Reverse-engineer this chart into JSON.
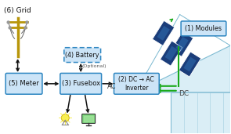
{
  "bg_color": "#ffffff",
  "box_fill": "#cce4f7",
  "box_edge": "#2e86c1",
  "battery_fill": "#cce4f7",
  "battery_edge": "#2e86c1",
  "box_labels": {
    "meter": "(5) Meter",
    "fusebox": "(3) Fusebox",
    "inverter": "(2) DC → AC\nInverter",
    "battery": "(4) Battery",
    "modules": "(1) Modules"
  },
  "text_labels": {
    "grid": "(6) Grid",
    "ac": "AC",
    "dc": "DC",
    "optional": "(Optional)"
  },
  "arrow_color": "#111111",
  "green_color": "#1aaa1a",
  "pole_color": "#b8960a",
  "panel_dark": "#1b3d7a",
  "panel_light": "#2e6db0",
  "building_fill": "#daeef6",
  "building_edge": "#7ab8d0",
  "roof_fill": "#daeef6",
  "roof_edge": "#7ab8d0"
}
